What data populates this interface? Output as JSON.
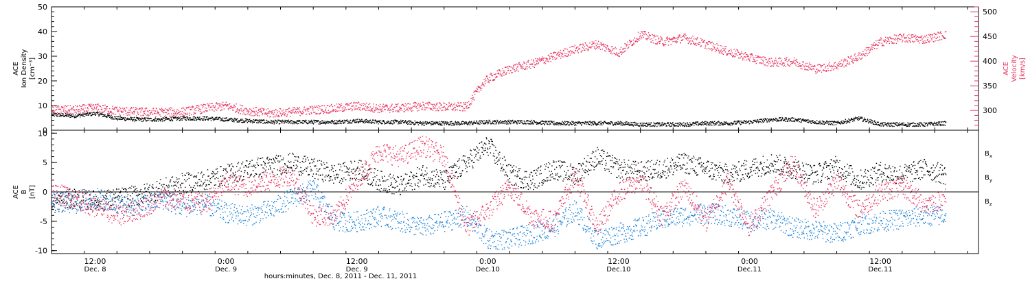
{
  "chart_data": [
    {
      "type": "scatter",
      "panel": "top",
      "x_unit": "hours from Dec 8 2011 00:00",
      "xlim": [
        8,
        93
      ],
      "left_axis": {
        "label_lines": [
          "ACE",
          "Ion Density",
          "[cm⁻³]"
        ],
        "ylim": [
          0,
          50
        ],
        "ticks": [
          0,
          10,
          20,
          30,
          40,
          50
        ]
      },
      "right_axis": {
        "label_lines": [
          "ACE",
          "Velocity",
          "[km/s]"
        ],
        "ylim": [
          260,
          510
        ],
        "ticks": [
          300,
          350,
          400,
          450,
          500
        ],
        "color": "#e8325f"
      },
      "series": [
        {
          "name": "density",
          "axis": "left",
          "color": "#000000",
          "x": [
            8,
            10,
            12,
            14,
            16,
            18,
            20,
            22,
            24,
            26,
            28,
            30,
            32,
            34,
            36,
            38,
            40,
            42,
            44,
            46,
            48,
            50,
            52,
            54,
            56,
            58,
            60,
            62,
            64,
            66,
            68,
            70,
            72,
            74,
            76,
            78,
            80,
            82,
            84,
            86,
            88,
            90
          ],
          "y": [
            6.5,
            6,
            7,
            5,
            4.5,
            4.5,
            5,
            5,
            4.5,
            4,
            3.5,
            3.5,
            3.5,
            3.5,
            4,
            3.5,
            3.5,
            3,
            3,
            3,
            3.5,
            3.5,
            3.5,
            3,
            3,
            3,
            3,
            2.5,
            2.5,
            2.5,
            3,
            3,
            3.5,
            4.5,
            4.5,
            3.5,
            3,
            5,
            2.5,
            2.5,
            2.5,
            3
          ]
        },
        {
          "name": "velocity",
          "axis": "right",
          "color": "#e8325f",
          "x": [
            8,
            10,
            12,
            14,
            16,
            18,
            20,
            22,
            24,
            26,
            28,
            30,
            32,
            34,
            36,
            38,
            40,
            42,
            44,
            46,
            47.5,
            48,
            50,
            52,
            54,
            56,
            58,
            60,
            62,
            64,
            66,
            68,
            70,
            72,
            74,
            76,
            78,
            80,
            82,
            84,
            86,
            88,
            90
          ],
          "y": [
            303,
            302,
            306,
            300,
            298,
            297,
            298,
            305,
            310,
            300,
            295,
            298,
            302,
            305,
            310,
            305,
            306,
            310,
            308,
            308,
            355,
            365,
            385,
            395,
            410,
            425,
            435,
            418,
            455,
            440,
            448,
            435,
            420,
            408,
            398,
            400,
            385,
            392,
            410,
            440,
            448,
            445,
            455
          ]
        }
      ]
    },
    {
      "type": "scatter",
      "panel": "bottom",
      "x_unit": "hours from Dec 8 2011 00:00",
      "xlim": [
        8,
        93
      ],
      "left_axis": {
        "label_lines": [
          "ACE",
          "B",
          "[nT]"
        ],
        "ylim": [
          -10.5,
          10.5
        ],
        "ticks": [
          -10,
          -5,
          0,
          5,
          10
        ]
      },
      "legend": [
        {
          "label": "Bx",
          "main": "B",
          "sub": "x",
          "color": "#000000"
        },
        {
          "label": "By",
          "main": "B",
          "sub": "y",
          "color": "#1b82d6"
        },
        {
          "label": "Bz",
          "main": "B",
          "sub": "z",
          "color": "#e8325f"
        }
      ],
      "series": [
        {
          "name": "Bx",
          "color": "#000000",
          "x": [
            8,
            10,
            12,
            14,
            16,
            18,
            20,
            22,
            24,
            26,
            28,
            30,
            32,
            34,
            36,
            38,
            40,
            42,
            44,
            46,
            48,
            50,
            52,
            54,
            56,
            58,
            60,
            62,
            64,
            66,
            68,
            70,
            72,
            74,
            76,
            78,
            80,
            82,
            84,
            86,
            88,
            90
          ],
          "y": [
            -2,
            -1,
            -1.5,
            -1,
            -0.5,
            0.5,
            1.5,
            2,
            3,
            4,
            4.5,
            5,
            4,
            3,
            4,
            2,
            1,
            3,
            2,
            5,
            8,
            3,
            2,
            4,
            3,
            6,
            4,
            3.5,
            4,
            5,
            4,
            3,
            4,
            5,
            4,
            3,
            4.5,
            2,
            3.5,
            3,
            4,
            3
          ]
        },
        {
          "name": "By",
          "color": "#1b82d6",
          "x": [
            8,
            10,
            12,
            14,
            16,
            18,
            20,
            22,
            24,
            26,
            28,
            30,
            32,
            34,
            36,
            38,
            40,
            42,
            44,
            46,
            48,
            50,
            52,
            54,
            56,
            58,
            60,
            62,
            64,
            66,
            68,
            70,
            72,
            74,
            76,
            78,
            80,
            82,
            84,
            86,
            88,
            90
          ],
          "y": [
            -1.5,
            -2,
            -1,
            -2,
            -2.5,
            -1,
            -2.5,
            -2,
            -3.5,
            -4,
            -3,
            -1,
            0.5,
            -5,
            -5,
            -4,
            -5,
            -6,
            -5,
            -4,
            -8,
            -8,
            -7,
            -6,
            -3,
            -8,
            -7,
            -6,
            -4.5,
            -4,
            -3.5,
            -4,
            -5,
            -4.5,
            -6,
            -6.5,
            -7,
            -5.5,
            -5,
            -4.5,
            -4,
            -4
          ]
        },
        {
          "name": "Bz",
          "color": "#e8325f",
          "x": [
            8,
            10,
            12,
            14,
            16,
            18,
            20,
            22,
            24,
            26,
            28,
            30,
            32,
            34,
            36,
            38,
            40,
            42,
            44,
            46,
            48,
            50,
            52,
            54,
            56,
            58,
            60,
            62,
            64,
            66,
            68,
            70,
            72,
            74,
            76,
            78,
            80,
            82,
            84,
            86,
            88,
            90
          ],
          "y": [
            0,
            -1,
            -2.5,
            -4,
            -3,
            -1,
            -1.5,
            -2,
            1.5,
            1,
            2,
            3,
            -4,
            -4,
            2,
            7,
            6,
            8,
            6,
            -6,
            -3,
            1,
            -4,
            -5,
            3,
            -6,
            0,
            2,
            -4,
            1,
            -5,
            2,
            -6,
            0,
            5,
            -3,
            2,
            -3,
            0,
            1,
            -2,
            -1
          ]
        }
      ],
      "zero_line": 0
    }
  ],
  "x_axis": {
    "ticks": [
      {
        "hour": 12,
        "time": "12:00",
        "date": "Dec. 8"
      },
      {
        "hour": 24,
        "time": "0:00",
        "date": "Dec. 9"
      },
      {
        "hour": 36,
        "time": "12:00",
        "date": "Dec. 9"
      },
      {
        "hour": 48,
        "time": "0:00",
        "date": "Dec.10"
      },
      {
        "hour": 60,
        "time": "12:00",
        "date": "Dec.10"
      },
      {
        "hour": 72,
        "time": "0:00",
        "date": "Dec.11"
      },
      {
        "hour": 84,
        "time": "12:00",
        "date": "Dec.11"
      }
    ],
    "title": "hours:minutes, Dec. 8, 2011 - Dec. 11, 2011"
  }
}
